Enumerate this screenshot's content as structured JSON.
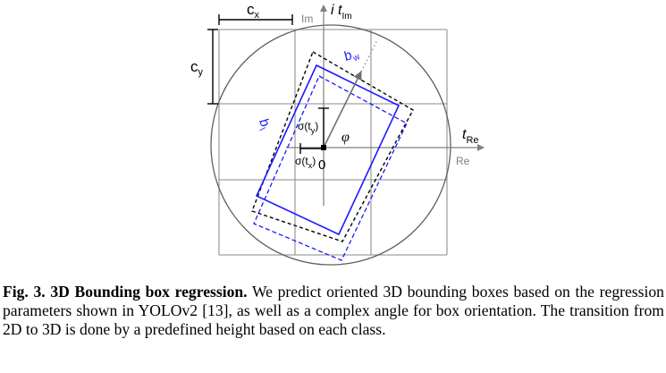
{
  "diagram": {
    "labels": {
      "cx": "c",
      "cx_sub": "x",
      "cy": "c",
      "cy_sub": "y",
      "im_axis": "Im",
      "im_t": "i t",
      "im_t_sub": "Im",
      "re_t": "t",
      "re_t_sub": "Re",
      "re_axis": "Re",
      "bw": "b",
      "bw_sub": "w",
      "bl": "b",
      "bl_sub": "l",
      "phi": "φ",
      "sigma_ty": "σ(t",
      "sigma_ty_sub": "y",
      "sigma_ty_close": ")",
      "sigma_tx": "σ(t",
      "sigma_tx_sub": "x",
      "sigma_tx_close": ")",
      "origin": "0"
    },
    "colors": {
      "grid": "#a0a0a0",
      "circle": "#606060",
      "axis": "#808080",
      "box_prediction": "#1a1aff",
      "box_dashed_black": "#000000",
      "box_dashed_blue": "#1a1aff",
      "arrow": "#707070",
      "marker": "#000000"
    }
  },
  "caption": {
    "label": "Fig. 3.",
    "title": "3D Bounding box regression.",
    "text": "We predict oriented 3D bounding boxes based on the regression parameters shown in YOLOv2 [13], as well as a complex angle for box orientation. The transition from 2D to 3D is done by a predefined height based on each class."
  }
}
